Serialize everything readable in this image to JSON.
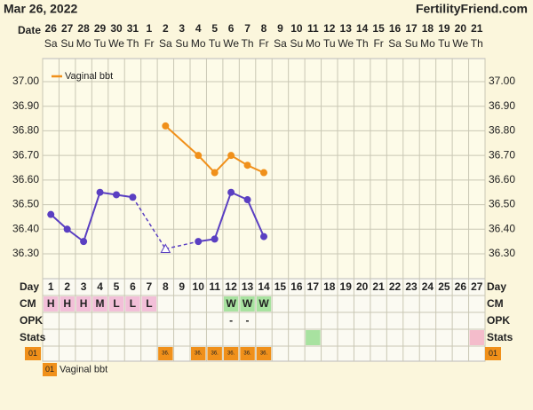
{
  "header": {
    "title": "Mar 26, 2022",
    "site": "FertilityFriend.com",
    "date_label": "Date"
  },
  "dates": [
    "26",
    "27",
    "28",
    "29",
    "30",
    "31",
    "1",
    "2",
    "3",
    "4",
    "5",
    "6",
    "7",
    "8",
    "9",
    "10",
    "11",
    "12",
    "13",
    "14",
    "15",
    "16",
    "17",
    "18",
    "19",
    "20",
    "21"
  ],
  "weekdays": [
    "Sa",
    "Su",
    "Mo",
    "Tu",
    "We",
    "Th",
    "Fr",
    "Sa",
    "Su",
    "Mo",
    "Tu",
    "We",
    "Th",
    "Fr",
    "Sa",
    "Su",
    "Mo",
    "Tu",
    "We",
    "Th",
    "Fr",
    "Sa",
    "Su",
    "Mo",
    "Tu",
    "We",
    "Th"
  ],
  "chart_data": {
    "type": "line",
    "categories": [
      "1",
      "2",
      "3",
      "4",
      "5",
      "6",
      "7",
      "8",
      "9",
      "10",
      "11",
      "12",
      "13",
      "14",
      "15",
      "16",
      "17",
      "18",
      "19",
      "20",
      "21",
      "22",
      "23",
      "24",
      "25",
      "26",
      "27"
    ],
    "series": [
      {
        "color": "#5a3fc2",
        "values": [
          36.46,
          36.4,
          36.35,
          36.55,
          36.54,
          36.53,
          null,
          null,
          null,
          36.35,
          36.36,
          36.55,
          36.52,
          36.37,
          null,
          null,
          null,
          null,
          null,
          null,
          null,
          null,
          null,
          null,
          null,
          null,
          null
        ]
      },
      {
        "color": "#5a3fc2",
        "marker": "open-triangle",
        "line_style": "dashed",
        "values": [
          null,
          null,
          null,
          null,
          null,
          null,
          null,
          36.32,
          null,
          null,
          null,
          null,
          null,
          null,
          null,
          null,
          null,
          null,
          null,
          null,
          null,
          null,
          null,
          null,
          null,
          null,
          null
        ]
      },
      {
        "name": "Vaginal bbt",
        "color": "#f0901a",
        "connect_gaps": true,
        "values": [
          null,
          null,
          null,
          null,
          null,
          null,
          null,
          36.82,
          null,
          36.7,
          36.63,
          36.7,
          36.66,
          36.63,
          null,
          null,
          null,
          null,
          null,
          null,
          null,
          null,
          null,
          null,
          null,
          null,
          null
        ]
      }
    ],
    "ylim": [
      36.2,
      37.1
    ],
    "yticks": [
      {
        "value": 37,
        "label": "37.00"
      },
      {
        "value": 36.9,
        "label": "36.90"
      },
      {
        "value": 36.8,
        "label": "36.80"
      },
      {
        "value": 36.7,
        "label": "36.70"
      },
      {
        "value": 36.6,
        "label": "36.60"
      },
      {
        "value": 36.5,
        "label": "36.50"
      },
      {
        "value": 36.4,
        "label": "36.40"
      },
      {
        "value": 36.3,
        "label": "36.30"
      }
    ],
    "grid": true,
    "legend": "upper left"
  },
  "rows": {
    "day": "Day",
    "cm": "CM",
    "opk": "OPK",
    "stats": "Stats",
    "code": "01"
  },
  "cm": [
    "H",
    "H",
    "H",
    "M",
    "L",
    "L",
    "L",
    null,
    null,
    null,
    null,
    "W",
    "W",
    "W",
    null,
    null,
    null,
    null,
    null,
    null,
    null,
    null,
    null,
    null,
    null,
    null,
    null
  ],
  "cm_colors": {
    "H": "#f2bfd8",
    "M": "#f2bfd8",
    "L": "#f2bfd8",
    "W": "#a8e2a0"
  },
  "opk": [
    null,
    null,
    null,
    null,
    null,
    null,
    null,
    null,
    null,
    null,
    null,
    "-",
    "-",
    null,
    null,
    null,
    null,
    null,
    null,
    null,
    null,
    null,
    null,
    null,
    null,
    null,
    null
  ],
  "stats": [
    null,
    null,
    null,
    null,
    null,
    null,
    null,
    null,
    null,
    null,
    null,
    null,
    null,
    null,
    null,
    null,
    "#a8e2a0",
    null,
    null,
    null,
    null,
    null,
    null,
    null,
    null,
    null,
    "#f4bccb"
  ],
  "temp_row": [
    null,
    null,
    null,
    null,
    null,
    null,
    null,
    "36.",
    null,
    "36.",
    "36.",
    "36.",
    "36.",
    "36.",
    null,
    null,
    null,
    null,
    null,
    null,
    null,
    null,
    null,
    null,
    null,
    null,
    null
  ],
  "bottom_legend": {
    "code": "01",
    "label": "Vaginal bbt"
  }
}
